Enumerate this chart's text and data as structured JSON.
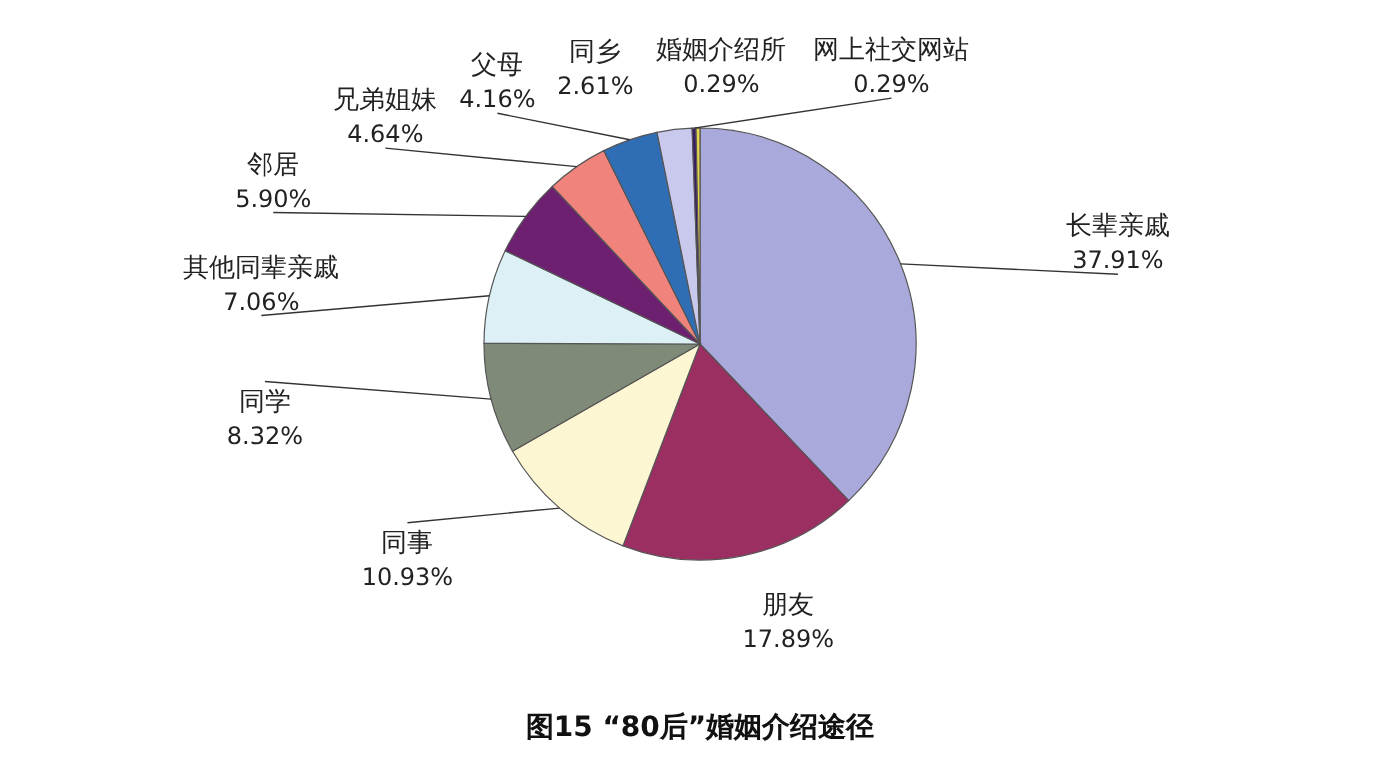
{
  "chart_data": {
    "type": "pie",
    "title": "图15 “80后”婚姻介绍途径",
    "categories": [
      "长辈亲戚",
      "朋友",
      "同事",
      "同学",
      "其他同辈亲戚",
      "邻居",
      "兄弟姐妹",
      "父母",
      "同乡",
      "网上社交网站",
      "婚姻介绍所"
    ],
    "values": [
      37.91,
      17.89,
      10.93,
      8.32,
      7.06,
      5.9,
      4.64,
      4.16,
      2.61,
      0.29,
      0.29
    ],
    "value_labels": [
      "37.91%",
      "17.89%",
      "10.93%",
      "8.32%",
      "7.06%",
      "5.90%",
      "4.64%",
      "4.16%",
      "2.61%",
      "0.29%",
      "0.29%"
    ],
    "colors": [
      "#a9a9dc",
      "#9c2f62",
      "#fdf6d2",
      "#7f8a78",
      "#dcf0f6",
      "#6e2070",
      "#f0847c",
      "#2f6db5",
      "#c9c9ee",
      "#3a1c66",
      "#e8d44a"
    ]
  }
}
